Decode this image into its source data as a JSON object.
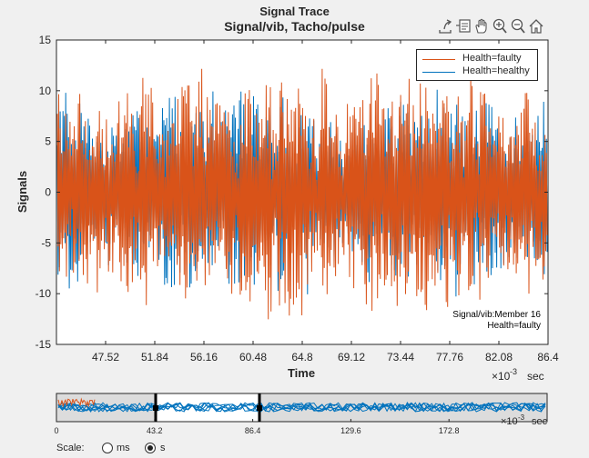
{
  "figure": {
    "supertitle": "Signal Trace",
    "title": "Signal/vib, Tacho/pulse"
  },
  "toolbar": {
    "icons": [
      "export-icon",
      "datatip-icon",
      "pan-hand-icon",
      "zoom-in-icon",
      "zoom-out-icon",
      "home-icon"
    ]
  },
  "main_axes": {
    "ylabel": "Signals",
    "xlabel": "Time",
    "x_exponent_base": "×10",
    "x_exponent_power": "-3",
    "x_unit": "sec",
    "member_info_line1": "Signal/vib:Member 16",
    "member_info_line2": "Health=faulty"
  },
  "legend": {
    "entries": [
      {
        "label": "Health=faulty",
        "color": "#d95319"
      },
      {
        "label": "Health=healthy",
        "color": "#0072bd"
      }
    ]
  },
  "chart_data": {
    "type": "line",
    "x_tick_labels": [
      "47.52",
      "51.84",
      "56.16",
      "60.48",
      "64.8",
      "69.12",
      "73.44",
      "77.76",
      "82.08",
      "86.4"
    ],
    "y_tick_labels": [
      "15",
      "10",
      "5",
      "0",
      "-5",
      "-10",
      "-15"
    ],
    "xlim": [
      43.2,
      86.4
    ],
    "ylim": [
      -15,
      15
    ],
    "x_units": "ms",
    "series": [
      {
        "name": "Health=faulty",
        "color": "#d95319",
        "amplitude_range": [
          -13.5,
          13.9
        ]
      },
      {
        "name": "Health=healthy",
        "color": "#0072bd",
        "amplitude_range": [
          -11.5,
          10.5
        ]
      }
    ],
    "grid": false,
    "legend_position": "top-right"
  },
  "panner": {
    "x_tick_labels": [
      "0",
      "43.2",
      "86.4",
      "129.6",
      "172.8"
    ],
    "xlim": [
      0,
      216
    ],
    "window": [
      43.2,
      86.4
    ],
    "x_exponent_base": "×10",
    "x_exponent_power": "-3",
    "x_unit": "sec"
  },
  "scale": {
    "label": "Scale:",
    "options": [
      {
        "label": "ms",
        "selected": false
      },
      {
        "label": "s",
        "selected": true
      }
    ]
  },
  "colors": {
    "faulty": "#d95319",
    "healthy": "#0072bd",
    "background": "#f0f0f0",
    "axes_background": "#ffffff"
  }
}
